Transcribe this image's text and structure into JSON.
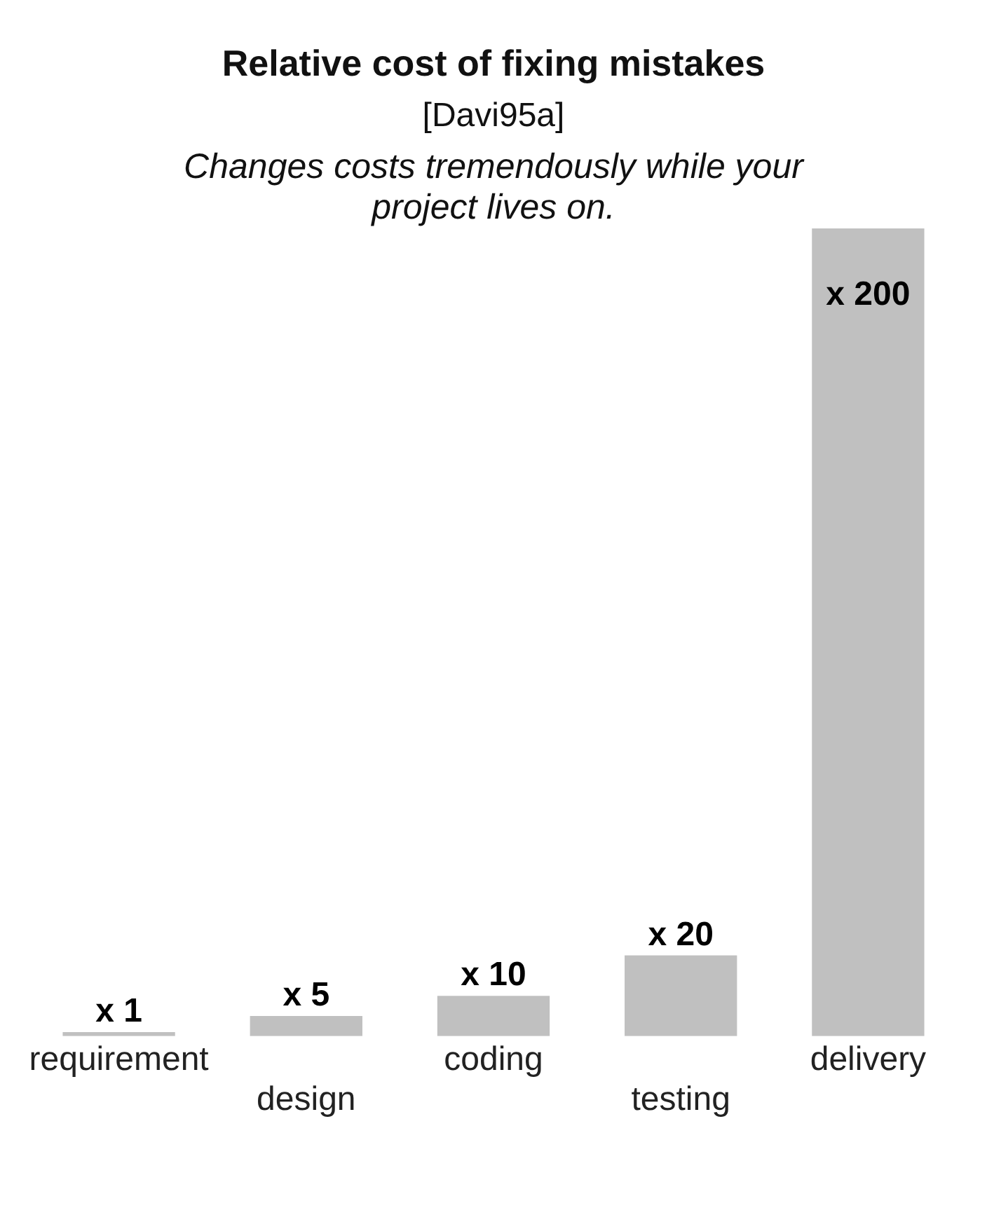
{
  "chart_data": {
    "type": "bar",
    "title": "Relative cost of fixing mistakes",
    "subtitle": "[Davi95a]",
    "annotations": [
      "Changes costs tremendously while your project lives on."
    ],
    "categories": [
      "requirement",
      "design",
      "coding",
      "testing",
      "delivery"
    ],
    "values": [
      1,
      5,
      10,
      20,
      200
    ],
    "color": "#c0c0c0",
    "value_labels": [
      "x 1",
      "x 5",
      "x 10",
      "x 20",
      "x 200"
    ],
    "grid": false,
    "legend": false
  }
}
